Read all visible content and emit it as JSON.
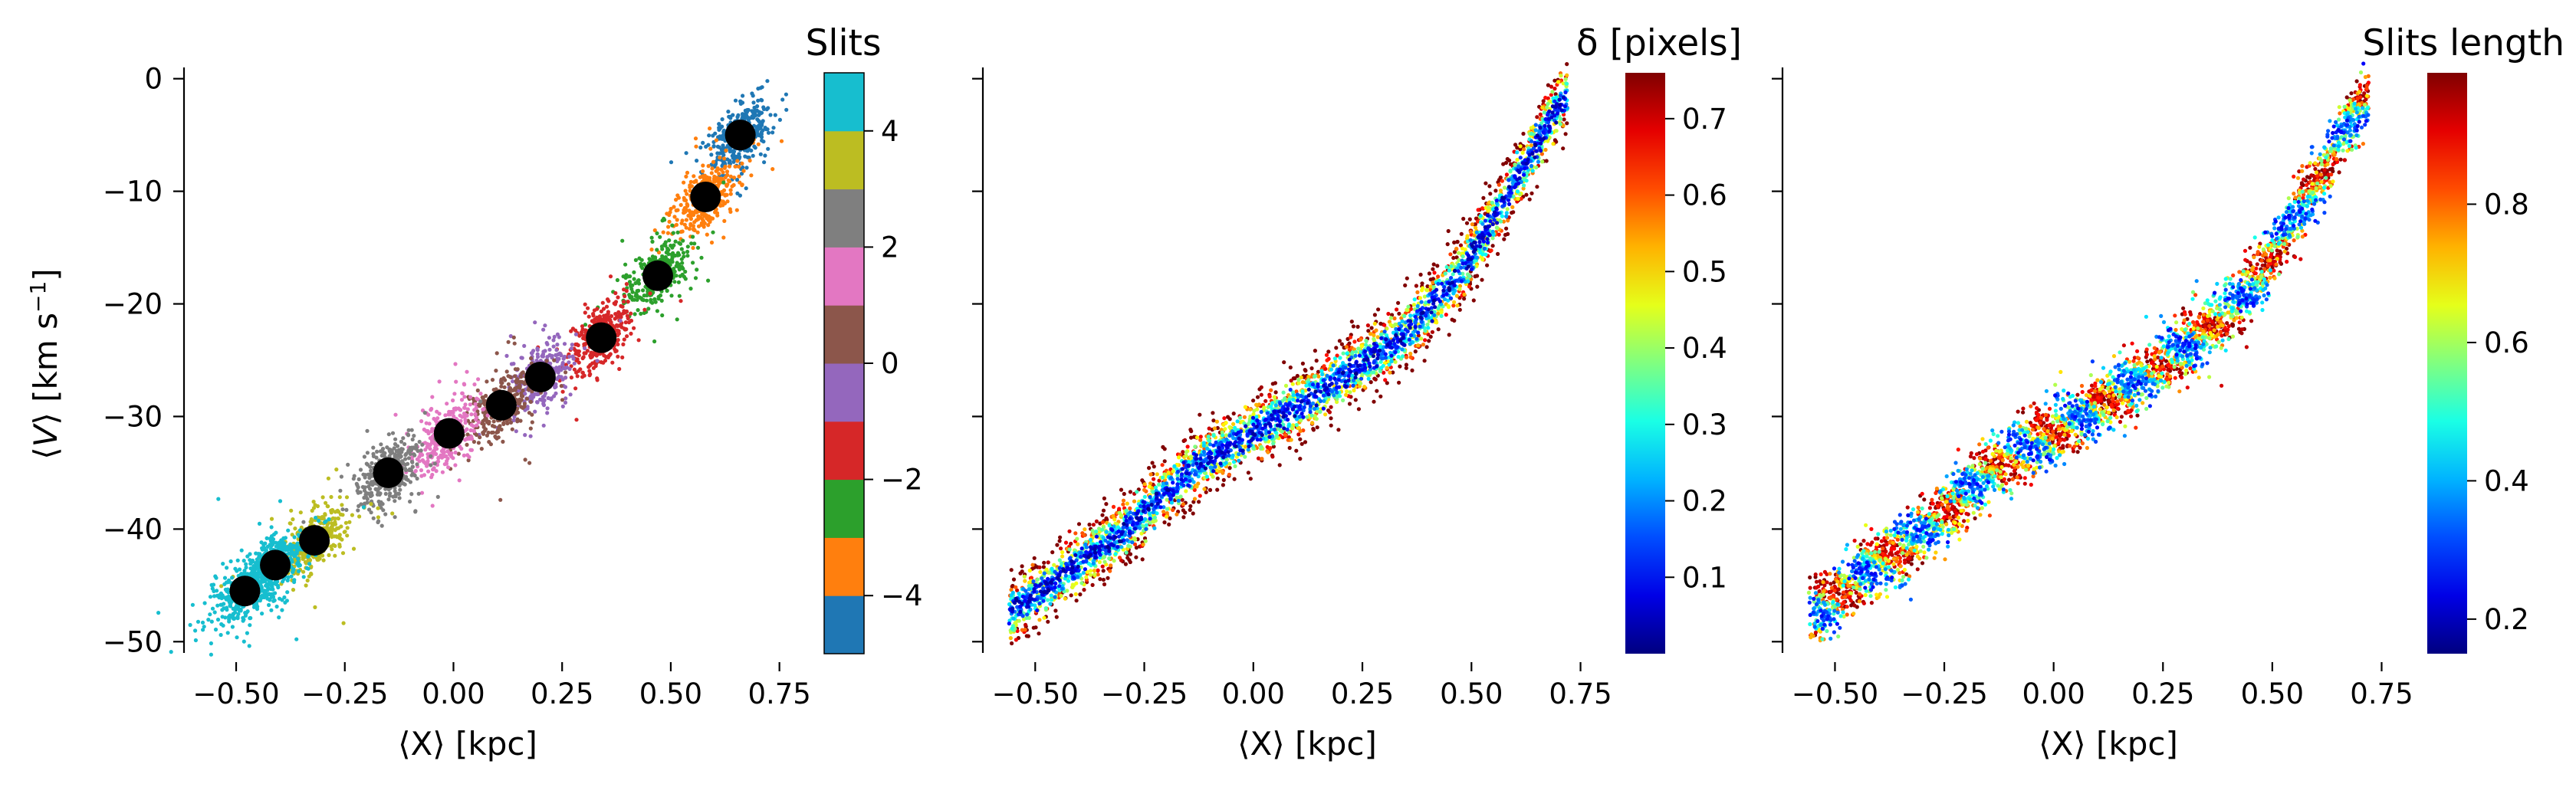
{
  "figure": {
    "panels": [
      {
        "id": "slits",
        "xlabel": "⟨X⟩ [kpc]",
        "ylabel": "⟨V⟩ [km s⁻¹]",
        "cbar_title": "Slits"
      },
      {
        "id": "delta",
        "xlabel": "⟨X⟩ [kpc]",
        "ylabel": "",
        "cbar_title": "δ [pixels]"
      },
      {
        "id": "length",
        "xlabel": "⟨X⟩ [kpc]",
        "ylabel": "",
        "cbar_title": "Slits length"
      }
    ]
  },
  "chart_data": [
    {
      "type": "scatter",
      "title": "",
      "xlabel": "⟨X⟩ [kpc]",
      "ylabel": "⟨V⟩ [km s⁻¹]",
      "xlim": [
        -0.62,
        0.8
      ],
      "ylim": [
        -51,
        1
      ],
      "xticks": [
        -0.5,
        -0.25,
        0.0,
        0.25,
        0.5,
        0.75
      ],
      "xtick_labels": [
        "−0.50",
        "−0.25",
        "0.00",
        "0.25",
        "0.50",
        "0.75"
      ],
      "yticks": [
        0,
        -10,
        -20,
        -30,
        -40,
        -50
      ],
      "ytick_labels": [
        "0",
        "−10",
        "−20",
        "−30",
        "−40",
        "−50"
      ],
      "colorbar": {
        "label": "Slits",
        "range": [
          -5,
          5
        ],
        "ticks": [
          -4,
          -2,
          0,
          2,
          4
        ],
        "tick_labels": [
          "−4",
          "−2",
          "0",
          "2",
          "4"
        ],
        "colors": [
          "#1f77b4",
          "#ff7f0e",
          "#2ca02c",
          "#d62728",
          "#9467bd",
          "#8c564b",
          "#e377c2",
          "#7f7f7f",
          "#bcbd22",
          "#17becf"
        ]
      },
      "clusters": [
        {
          "slit": -5,
          "center": [
            0.66,
            -5.0
          ],
          "color": "#1f77b4"
        },
        {
          "slit": -4,
          "center": [
            0.58,
            -10.5
          ],
          "color": "#ff7f0e"
        },
        {
          "slit": -3,
          "center": [
            0.47,
            -17.5
          ],
          "color": "#2ca02c"
        },
        {
          "slit": -2,
          "center": [
            0.34,
            -23.0
          ],
          "color": "#d62728"
        },
        {
          "slit": -1,
          "center": [
            0.2,
            -26.5
          ],
          "color": "#9467bd"
        },
        {
          "slit": 0,
          "center": [
            0.11,
            -29.0
          ],
          "color": "#8c564b"
        },
        {
          "slit": 1,
          "center": [
            -0.01,
            -31.5
          ],
          "color": "#e377c2"
        },
        {
          "slit": 2,
          "center": [
            -0.15,
            -35.0
          ],
          "color": "#7f7f7f"
        },
        {
          "slit": 3,
          "center": [
            -0.32,
            -41.0
          ],
          "color": "#bcbd22"
        },
        {
          "slit": 4,
          "center": [
            -0.41,
            -43.2
          ],
          "color": "#17becf"
        },
        {
          "slit": 5,
          "center": [
            -0.48,
            -45.5
          ],
          "color": "#17becf"
        }
      ],
      "mean_points": {
        "x": [
          0.66,
          0.58,
          0.47,
          0.34,
          0.2,
          0.11,
          -0.01,
          -0.15,
          -0.32,
          -0.41,
          -0.48
        ],
        "y": [
          -5.0,
          -10.5,
          -17.5,
          -23.0,
          -26.5,
          -29.0,
          -31.5,
          -35.0,
          -41.0,
          -43.2,
          -45.5
        ],
        "color": "#000000"
      }
    },
    {
      "type": "scatter",
      "title": "",
      "xlabel": "⟨X⟩ [kpc]",
      "ylabel": "",
      "xlim": [
        -0.62,
        0.8
      ],
      "ylim": [
        -51,
        1
      ],
      "xticks": [
        -0.5,
        -0.25,
        0.0,
        0.25,
        0.5,
        0.75
      ],
      "xtick_labels": [
        "−0.50",
        "−0.25",
        "0.00",
        "0.25",
        "0.50",
        "0.75"
      ],
      "colorbar": {
        "label": "δ [pixels]",
        "colormap": "jet",
        "range": [
          0.0,
          0.76
        ],
        "ticks": [
          0.1,
          0.2,
          0.3,
          0.4,
          0.5,
          0.6,
          0.7
        ],
        "tick_labels": [
          "0.1",
          "0.2",
          "0.3",
          "0.4",
          "0.5",
          "0.6",
          "0.7"
        ]
      },
      "encoding": "color = offset from ridge line (low in center, high at edges)"
    },
    {
      "type": "scatter",
      "title": "",
      "xlabel": "⟨X⟩ [kpc]",
      "ylabel": "",
      "xlim": [
        -0.62,
        0.8
      ],
      "ylim": [
        -51,
        1
      ],
      "xticks": [
        -0.5,
        -0.25,
        0.0,
        0.25,
        0.5,
        0.75
      ],
      "xtick_labels": [
        "−0.50",
        "−0.25",
        "0.00",
        "0.25",
        "0.50",
        "0.75"
      ],
      "colorbar": {
        "label": "Slits length",
        "colormap": "jet",
        "range": [
          0.15,
          0.99
        ],
        "ticks": [
          0.2,
          0.4,
          0.6,
          0.8
        ],
        "tick_labels": [
          "0.2",
          "0.4",
          "0.6",
          "0.8"
        ]
      },
      "encoding": "color = slit length (high near slit centers, low in gaps)"
    }
  ]
}
